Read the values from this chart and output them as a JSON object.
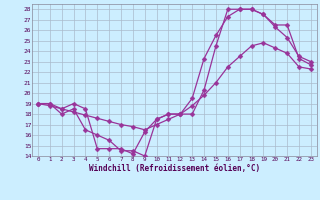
{
  "xlabel": "Windchill (Refroidissement éolien,°C)",
  "background_color": "#cceeff",
  "grid_color": "#aabbcc",
  "line_color": "#993399",
  "xlim": [
    -0.5,
    23.5
  ],
  "ylim": [
    14,
    28.5
  ],
  "xticks": [
    0,
    1,
    2,
    3,
    4,
    5,
    6,
    7,
    8,
    9,
    10,
    11,
    12,
    13,
    14,
    15,
    16,
    17,
    18,
    19,
    20,
    21,
    22,
    23
  ],
  "yticks": [
    14,
    15,
    16,
    17,
    18,
    19,
    20,
    21,
    22,
    23,
    24,
    25,
    26,
    27,
    28
  ],
  "line1_x": [
    0,
    1,
    2,
    3,
    4,
    5,
    6,
    7,
    8,
    9,
    10,
    11,
    12,
    13,
    14,
    15,
    16,
    17,
    18,
    19,
    20,
    21,
    22,
    23
  ],
  "line1_y": [
    19,
    19,
    18.5,
    19,
    18.5,
    14.7,
    14.7,
    14.7,
    14.2,
    16.3,
    17.5,
    18,
    18,
    18,
    20.3,
    24.5,
    28,
    28,
    28,
    27.5,
    26.5,
    26.5,
    23.3,
    22.7
  ],
  "line2_x": [
    0,
    1,
    2,
    3,
    4,
    5,
    6,
    7,
    8,
    9,
    10,
    11,
    12,
    13,
    14,
    15,
    16,
    17,
    18,
    19,
    20,
    21,
    22,
    23
  ],
  "line2_y": [
    19,
    19,
    18,
    18.5,
    16.5,
    16,
    15.5,
    14.5,
    14.5,
    14,
    17.5,
    18,
    18,
    19.5,
    23.3,
    25.5,
    27.3,
    28,
    28,
    27.5,
    26.3,
    25.3,
    23.5,
    23.0
  ],
  "line3_x": [
    0,
    1,
    2,
    3,
    4,
    5,
    6,
    7,
    8,
    9,
    10,
    11,
    12,
    13,
    14,
    15,
    16,
    17,
    18,
    19,
    20,
    21,
    22,
    23
  ],
  "line3_y": [
    19,
    18.8,
    18.5,
    18.2,
    17.9,
    17.6,
    17.3,
    17.0,
    16.8,
    16.5,
    17.0,
    17.5,
    18.0,
    18.8,
    19.8,
    21.0,
    22.5,
    23.5,
    24.5,
    24.8,
    24.3,
    23.8,
    22.5,
    22.3
  ],
  "marker": "D",
  "markersize": 2.5,
  "linewidth": 0.9
}
